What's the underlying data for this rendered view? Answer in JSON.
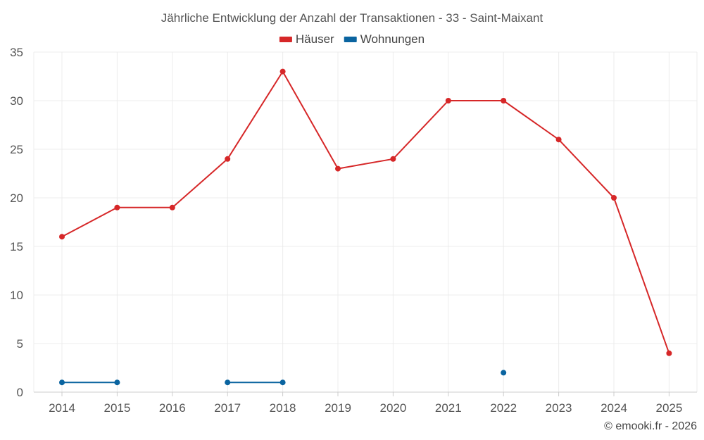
{
  "chart_data": {
    "type": "line",
    "title": "Jährliche Entwicklung der Anzahl der Transaktionen - 33 - Saint-Maixant",
    "x": [
      "2014",
      "2015",
      "2016",
      "2017",
      "2018",
      "2019",
      "2020",
      "2021",
      "2022",
      "2023",
      "2024",
      "2025"
    ],
    "series": [
      {
        "name": "Häuser",
        "color": "#d62728",
        "values": [
          16,
          19,
          19,
          24,
          33,
          23,
          24,
          30,
          30,
          26,
          20,
          4
        ]
      },
      {
        "name": "Wohnungen",
        "color": "#0a64a0",
        "values": [
          1,
          1,
          null,
          1,
          1,
          null,
          null,
          null,
          2,
          null,
          null,
          null
        ]
      }
    ],
    "ylim": [
      0,
      35
    ],
    "yticks": [
      0,
      5,
      10,
      15,
      20,
      25,
      30,
      35
    ],
    "xlabel": "",
    "ylabel": "",
    "grid": true,
    "legend_position": "top-center"
  },
  "credit": "© emooki.fr - 2026"
}
